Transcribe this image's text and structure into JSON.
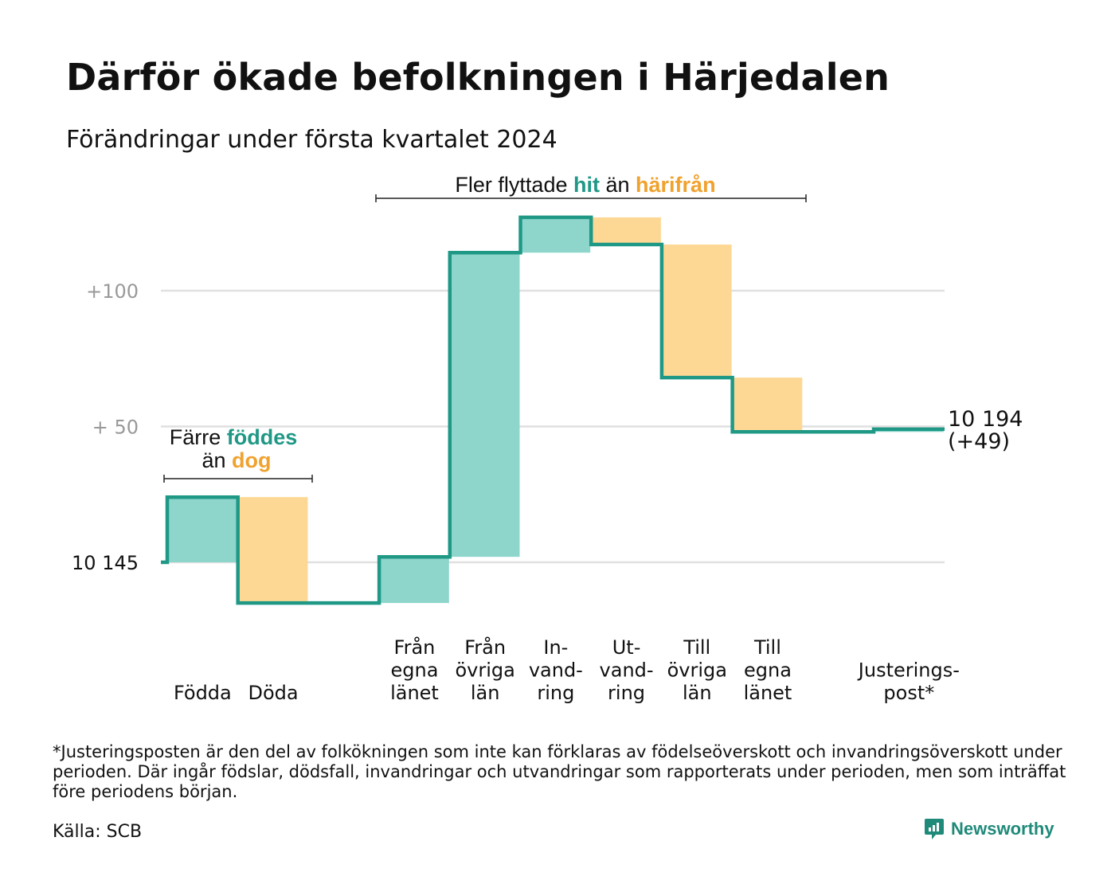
{
  "title": "Därför ökade befolkningen i Härjedalen",
  "subtitle": "Förändringar under första kvartalet 2024",
  "colors": {
    "line": "#1f9886",
    "positive": "#8ed6cc",
    "negative": "#fdd895",
    "teal_text": "#1f9886",
    "orange_text": "#f0a22e",
    "grid": "#e0e0e0",
    "tick": "#999999"
  },
  "chart_data": {
    "type": "waterfall",
    "base": 10145,
    "final": 10194,
    "y_ticks": [
      {
        "value": 100,
        "label": "+100"
      },
      {
        "value": 50,
        "label": "+  50"
      },
      {
        "value": 0,
        "label": "10  145"
      }
    ],
    "steps": [
      {
        "label": [
          "Födda"
        ],
        "change": 24,
        "sign": "positive"
      },
      {
        "label": [
          "Döda"
        ],
        "change": -39,
        "sign": "negative"
      },
      {
        "label": [
          ""
        ],
        "change": 0,
        "sign": "none"
      },
      {
        "label": [
          "Från",
          "egna",
          "länet"
        ],
        "change": 17,
        "sign": "positive"
      },
      {
        "label": [
          "Från",
          "övriga",
          "län"
        ],
        "change": 112,
        "sign": "positive"
      },
      {
        "label": [
          "In-",
          "vand-",
          "ring"
        ],
        "change": 13,
        "sign": "positive"
      },
      {
        "label": [
          "Ut-",
          "vand-",
          "ring"
        ],
        "change": -10,
        "sign": "negative"
      },
      {
        "label": [
          "Till",
          "övriga",
          "län"
        ],
        "change": -49,
        "sign": "negative"
      },
      {
        "label": [
          "Till",
          "egna",
          "länet"
        ],
        "change": -20,
        "sign": "negative"
      },
      {
        "label": [
          ""
        ],
        "change": 0,
        "sign": "none"
      },
      {
        "label": [
          "Justerings-",
          "post*"
        ],
        "change": 1,
        "sign": "positive"
      }
    ],
    "end_label": {
      "total": "10 194",
      "change": "(+49)"
    }
  },
  "annotations": {
    "births": {
      "line1_pre": "Färre ",
      "line1_hl": "föddes",
      "line2_pre": "än ",
      "line2_hl": "dog"
    },
    "migration": {
      "pre": "Fler flyttade ",
      "hl1": "hit",
      "mid": "än ",
      "hl2": "härifrån"
    }
  },
  "footnote": "*Justeringsposten är den del av folkökningen som inte kan förklaras av födelseöverskott och invandringsöverskott under perioden. Där ingår födslar, dödsfall, invandringar och utvandringar som rapporterats under perioden, men som inträffat före periodens början.",
  "source": "Källa: SCB",
  "brand": {
    "name": "Newsworthy",
    "icon": "newsworthy-logo-icon"
  }
}
